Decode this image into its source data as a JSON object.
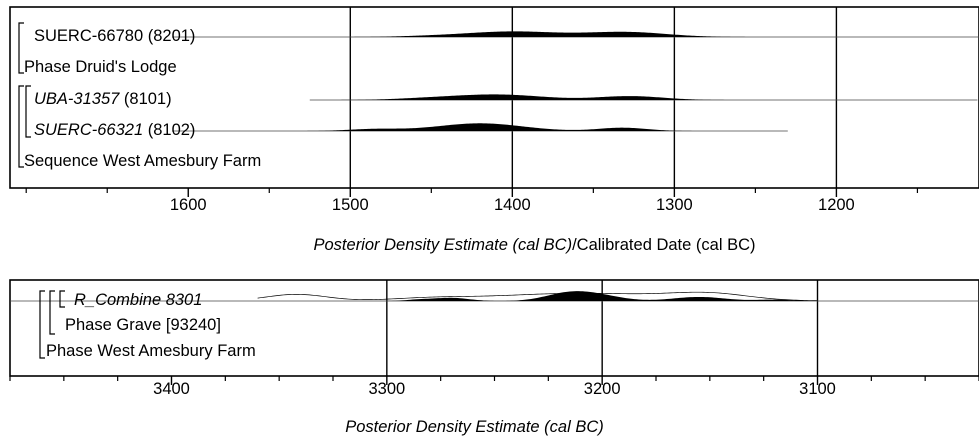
{
  "chart_data": [
    {
      "type": "density",
      "xlim": [
        1710,
        1112
      ],
      "xticks": [
        1600,
        1500,
        1400,
        1300,
        1200
      ],
      "xlabel_italic": "Posterior Density Estimate (cal BC)",
      "xlabel_plain": "/Calibrated Date (cal BC)",
      "grid_x": [
        1500,
        1400,
        1300,
        1200
      ],
      "rows": [
        {
          "label": "SUERC-66780",
          "suffix": " (8201)",
          "italic": false,
          "kind": "date",
          "range": [
            1610,
            1112
          ],
          "peaks": [
            [
              1400,
              1.0,
              28
            ],
            [
              1330,
              0.9,
              25
            ],
            [
              1450,
              0.15,
              20
            ]
          ]
        },
        {
          "label": "Phase Druid's Lodge",
          "italic": false,
          "kind": "phase"
        },
        {
          "label": "UBA-31357",
          "suffix": " (8101)",
          "italic": true,
          "kind": "date",
          "range": [
            1525,
            1113
          ],
          "peaks": [
            [
              1410,
              1.0,
              28
            ],
            [
              1327,
              0.7,
              20
            ],
            [
              1455,
              0.2,
              20
            ]
          ]
        },
        {
          "label": "SUERC-66321",
          "suffix": " (8102)",
          "italic": true,
          "kind": "date",
          "range": [
            1610,
            1230
          ],
          "peaks": [
            [
              1420,
              1.4,
              26
            ],
            [
              1485,
              0.35,
              16
            ],
            [
              1332,
              0.6,
              15
            ]
          ]
        },
        {
          "label": "Sequence West Amesbury Farm",
          "italic": false,
          "kind": "phase"
        }
      ]
    },
    {
      "type": "density",
      "xlim": [
        3475,
        3025
      ],
      "xticks": [
        3400,
        3300,
        3200,
        3100
      ],
      "xlabel_italic": "Posterior Density Estimate (cal BC)",
      "xlabel_plain": "",
      "grid_x": [
        3300,
        3200,
        3100
      ],
      "rows": [
        {
          "label": "R_Combine 8301",
          "suffix": "",
          "italic": true,
          "kind": "combine",
          "range": [
            3475,
            3025
          ],
          "outline_peaks": [
            [
              3342,
              0.6,
              14
            ],
            [
              3280,
              0.2,
              18
            ],
            [
              3210,
              0.7,
              40
            ],
            [
              3150,
              0.55,
              18
            ]
          ],
          "filled_peaks": [
            [
              3218,
              0.55,
              10
            ],
            [
              3205,
              0.75,
              12
            ],
            [
              3155,
              0.45,
              12
            ],
            [
              3270,
              0.35,
              8
            ],
            [
              3285,
              0.15,
              6
            ],
            [
              3120,
              0.15,
              8
            ]
          ],
          "filled_range": [
            3300,
            3100
          ]
        },
        {
          "label": "Phase Grave [93240]",
          "italic": false,
          "kind": "phase"
        },
        {
          "label": "Phase West Amesbury Farm",
          "italic": false,
          "kind": "phase"
        }
      ]
    }
  ]
}
